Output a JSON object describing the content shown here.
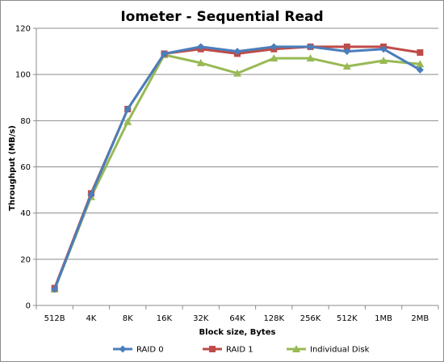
{
  "chart_data": {
    "type": "line",
    "title": "Iometer - Sequential Read",
    "xlabel": "Block size, Bytes",
    "ylabel": "Throughput (MB/s)",
    "ylim": [
      0,
      120
    ],
    "yticks": [
      0,
      20,
      40,
      60,
      80,
      100,
      120
    ],
    "grid": "horizontal",
    "legend": "bottom",
    "categories": [
      "512B",
      "4K",
      "8K",
      "16K",
      "32K",
      "64K",
      "128K",
      "256K",
      "512K",
      "1MB",
      "2MB"
    ],
    "series": [
      {
        "name": "RAID 0",
        "color": "#4a7ebb",
        "marker": "diamond",
        "values": [
          7,
          48,
          85,
          109,
          112,
          110,
          112,
          112,
          110,
          111,
          102
        ]
      },
      {
        "name": "RAID 1",
        "color": "#be4b48",
        "marker": "square",
        "values": [
          7.5,
          48.5,
          85,
          109,
          111,
          109,
          111,
          112,
          112,
          112,
          109.5
        ]
      },
      {
        "name": "Individual Disk",
        "color": "#98b954",
        "marker": "triangle",
        "values": [
          7,
          47,
          79.5,
          108.5,
          105,
          100.5,
          107,
          107,
          103.5,
          106,
          104.5
        ]
      }
    ]
  }
}
